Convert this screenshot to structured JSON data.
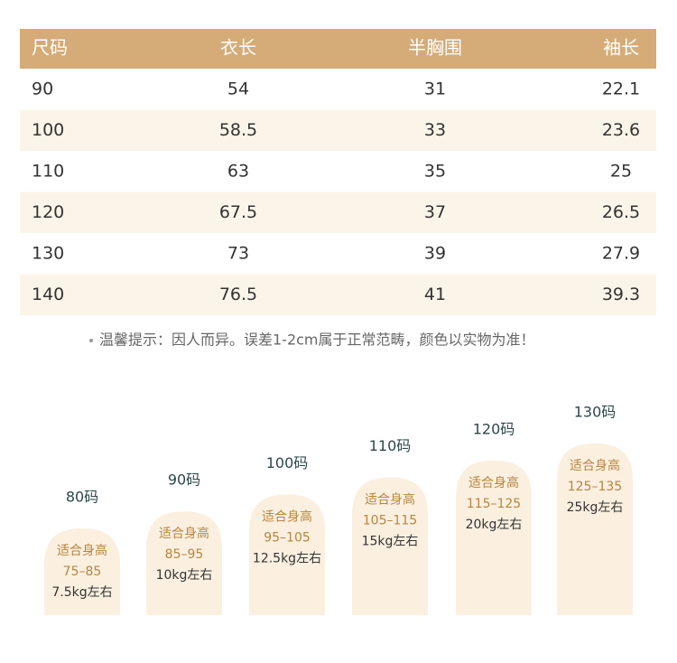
{
  "table": {
    "header": [
      "尺码",
      "衣长",
      "半胸围",
      "袖长"
    ],
    "rows": [
      [
        "90",
        "54",
        "31",
        "22.1"
      ],
      [
        "100",
        "58.5",
        "33",
        "23.6"
      ],
      [
        "110",
        "63",
        "35",
        "25"
      ],
      [
        "120",
        "67.5",
        "37",
        "26.5"
      ],
      [
        "130",
        "73",
        "39",
        "27.9"
      ],
      [
        "140",
        "76.5",
        "41",
        "39.3"
      ]
    ]
  },
  "note": "温馨提示：因人而异。误差1-2cm属于正常范畴，颜色以实物为准！",
  "cards": [
    {
      "size": "80码",
      "label": "适合身高",
      "height": "75–85",
      "weight": "7.5kg左右"
    },
    {
      "size": "90码",
      "label": "适合身高",
      "height": "85–95",
      "weight": "10kg左右"
    },
    {
      "size": "100码",
      "label": "适合身高",
      "height": "95–105",
      "weight": "12.5kg左右"
    },
    {
      "size": "110码",
      "label": "适合身高",
      "height": "105–115",
      "weight": "15kg左右"
    },
    {
      "size": "120码",
      "label": "适合身高",
      "height": "115–125",
      "weight": "20kg左右"
    },
    {
      "size": "130码",
      "label": "适合身高",
      "height": "125–135",
      "weight": "25kg左右"
    }
  ]
}
